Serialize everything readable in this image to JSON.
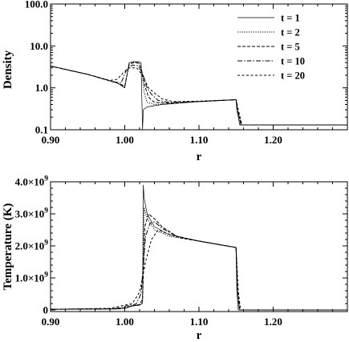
{
  "chart_data": [
    {
      "type": "line",
      "xlabel": "r",
      "ylabel": "Density",
      "xlim": [
        0.9,
        1.3
      ],
      "ylim": [
        0.1,
        100.0
      ],
      "yscale": "log",
      "grid": false,
      "legend_position": "top-right",
      "x_ticks": [
        0.9,
        1.0,
        1.1,
        1.2
      ],
      "x_tick_labels": [
        "0.90",
        "1.00",
        "1.10",
        "1.20"
      ],
      "y_ticks": [
        0.1,
        1.0,
        10.0,
        100.0
      ],
      "y_tick_labels": [
        "0.1",
        "1.0",
        "10.0",
        "100.0"
      ],
      "series": [
        {
          "name": "t = 1",
          "x": [
            0.9,
            0.95,
            0.99,
            1.0,
            1.006,
            1.012,
            1.018,
            1.022,
            1.024,
            1.025,
            1.03,
            1.05,
            1.1,
            1.15,
            1.151,
            1.155,
            1.3
          ],
          "y": [
            3.3,
            2.1,
            1.3,
            1.0,
            4.0,
            4.2,
            4.2,
            4.0,
            0.1,
            0.3,
            0.35,
            0.4,
            0.47,
            0.52,
            0.3,
            0.13,
            0.13
          ]
        },
        {
          "name": "t = 2",
          "x": [
            0.9,
            0.95,
            0.99,
            1.0,
            1.006,
            1.012,
            1.018,
            1.022,
            1.026,
            1.03,
            1.04,
            1.06,
            1.1,
            1.15,
            1.152,
            1.156,
            1.3
          ],
          "y": [
            3.3,
            2.1,
            1.3,
            1.05,
            3.9,
            4.1,
            4.1,
            3.5,
            0.8,
            0.45,
            0.4,
            0.42,
            0.47,
            0.52,
            0.3,
            0.13,
            0.13
          ]
        },
        {
          "name": "t = 5",
          "x": [
            0.9,
            0.95,
            0.99,
            1.0,
            1.006,
            1.012,
            1.018,
            1.022,
            1.027,
            1.032,
            1.04,
            1.06,
            1.1,
            1.15,
            1.152,
            1.157,
            1.3
          ],
          "y": [
            3.3,
            2.1,
            1.3,
            1.1,
            3.6,
            4.0,
            3.9,
            3.0,
            1.1,
            0.6,
            0.45,
            0.43,
            0.47,
            0.52,
            0.3,
            0.13,
            0.13
          ]
        },
        {
          "name": "t = 10",
          "x": [
            0.9,
            0.95,
            0.985,
            0.995,
            1.002,
            1.01,
            1.018,
            1.024,
            1.03,
            1.036,
            1.045,
            1.06,
            1.1,
            1.15,
            1.152,
            1.157,
            1.3
          ],
          "y": [
            3.3,
            2.1,
            1.4,
            1.3,
            2.6,
            3.5,
            3.4,
            2.2,
            1.0,
            0.7,
            0.5,
            0.45,
            0.47,
            0.52,
            0.3,
            0.13,
            0.13
          ]
        },
        {
          "name": "t = 20",
          "x": [
            0.9,
            0.95,
            0.98,
            0.99,
            0.998,
            1.006,
            1.016,
            1.024,
            1.032,
            1.04,
            1.05,
            1.065,
            1.1,
            1.15,
            1.153,
            1.158,
            1.3
          ],
          "y": [
            3.3,
            2.1,
            1.5,
            1.6,
            2.3,
            3.0,
            3.0,
            2.0,
            1.0,
            0.75,
            0.55,
            0.47,
            0.48,
            0.52,
            0.3,
            0.13,
            0.13
          ]
        }
      ]
    },
    {
      "type": "line",
      "xlabel": "r",
      "ylabel": "Temperature (K)",
      "xlim": [
        0.9,
        1.3
      ],
      "ylim": [
        -50000000.0,
        4000000000.0
      ],
      "grid": false,
      "x_ticks": [
        0.9,
        1.0,
        1.1,
        1.2
      ],
      "x_tick_labels": [
        "0.90",
        "1.00",
        "1.10",
        "1.20"
      ],
      "y_ticks": [
        0,
        1000000000.0,
        2000000000.0,
        3000000000.0,
        4000000000.0
      ],
      "y_tick_labels": [
        {
          "mantissa": "0",
          "exp": ""
        },
        {
          "mantissa": "1.0×10",
          "exp": "9"
        },
        {
          "mantissa": "2.0×10",
          "exp": "9"
        },
        {
          "mantissa": "3.0×10",
          "exp": "9"
        },
        {
          "mantissa": "4.0×10",
          "exp": "9"
        }
      ],
      "series": [
        {
          "name": "t = 1",
          "x": [
            0.9,
            0.99,
            1.0,
            1.01,
            1.02,
            1.024,
            1.025,
            1.026,
            1.03,
            1.04,
            1.06,
            1.1,
            1.15,
            1.151,
            1.153,
            1.3
          ],
          "y": [
            20000000.0,
            30000000.0,
            50000000.0,
            120000000.0,
            150000000.0,
            200000000.0,
            3900000000.0,
            3500000000.0,
            3000000000.0,
            2600000000.0,
            2350000000.0,
            2150000000.0,
            1950000000.0,
            600000000.0,
            0.0,
            0.0
          ]
        },
        {
          "name": "t = 2",
          "x": [
            0.9,
            0.99,
            1.0,
            1.01,
            1.02,
            1.024,
            1.026,
            1.028,
            1.032,
            1.04,
            1.06,
            1.1,
            1.15,
            1.152,
            1.154,
            1.3
          ],
          "y": [
            20000000.0,
            30000000.0,
            60000000.0,
            130000000.0,
            160000000.0,
            250000000.0,
            3200000000.0,
            3000000000.0,
            2800000000.0,
            2500000000.0,
            2300000000.0,
            2150000000.0,
            1950000000.0,
            600000000.0,
            0.0,
            0.0
          ]
        },
        {
          "name": "t = 5",
          "x": [
            0.9,
            0.99,
            1.0,
            1.01,
            1.02,
            1.024,
            1.027,
            1.032,
            1.04,
            1.05,
            1.07,
            1.1,
            1.15,
            1.152,
            1.155,
            1.3
          ],
          "y": [
            20000000.0,
            40000000.0,
            70000000.0,
            130000000.0,
            170000000.0,
            350000000.0,
            2600000000.0,
            3000000000.0,
            2850000000.0,
            2600000000.0,
            2300000000.0,
            2150000000.0,
            1950000000.0,
            600000000.0,
            0.0,
            0.0
          ]
        },
        {
          "name": "t = 10",
          "x": [
            0.9,
            0.985,
            0.995,
            1.005,
            1.015,
            1.022,
            1.028,
            1.034,
            1.04,
            1.05,
            1.07,
            1.1,
            1.15,
            1.152,
            1.155,
            1.3
          ],
          "y": [
            20000000.0,
            40000000.0,
            80000000.0,
            140000000.0,
            180000000.0,
            500000000.0,
            2300000000.0,
            2700000000.0,
            2750000000.0,
            2550000000.0,
            2300000000.0,
            2150000000.0,
            1950000000.0,
            600000000.0,
            0.0,
            0.0
          ]
        },
        {
          "name": "t = 20",
          "x": [
            0.9,
            0.98,
            0.99,
            1.0,
            1.01,
            1.02,
            1.028,
            1.036,
            1.045,
            1.055,
            1.075,
            1.1,
            1.15,
            1.153,
            1.156,
            1.3
          ],
          "y": [
            20000000.0,
            50000000.0,
            100000000.0,
            150000000.0,
            200000000.0,
            550000000.0,
            1500000000.0,
            2200000000.0,
            2500000000.0,
            2400000000.0,
            2250000000.0,
            2150000000.0,
            1950000000.0,
            600000000.0,
            0.0,
            0.0
          ]
        }
      ]
    }
  ],
  "styles": {
    "line_color": "#000000",
    "dash": [
      "",
      "1.2 1.6",
      "4 2",
      "6 2 1.5 2",
      "3 2.5"
    ],
    "width": [
      0.7,
      1.0,
      1.0,
      1.0,
      1.0
    ]
  }
}
